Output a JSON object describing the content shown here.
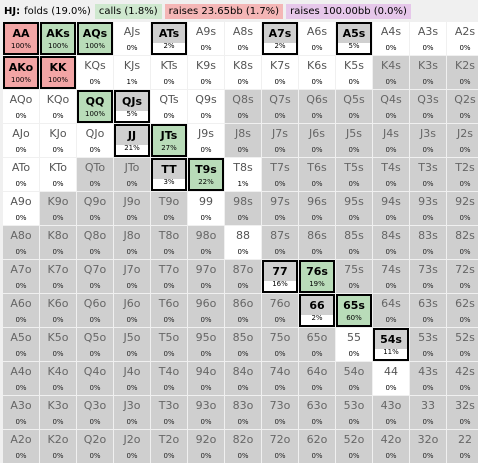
{
  "header": {
    "position": "HJ:",
    "folds": "folds (19.0%)",
    "calls": "calls (1.8%)",
    "raise_small": "raises 23.65bb (1.7%)",
    "raise_big": "raises 100.00bb (0.0%)"
  },
  "colors": {
    "calls": "#b9dcb9",
    "raise": "#f2a5a5",
    "raise_big": "#e6c7ea",
    "fold": "#cfcfcf"
  },
  "grid": [
    [
      [
        "AA",
        "100%",
        "raise"
      ],
      [
        "AKs",
        "100%",
        "calls"
      ],
      [
        "AQs",
        "100%",
        "calls"
      ],
      [
        "AJs",
        "0%",
        "open"
      ],
      [
        "ATs",
        "2%",
        "boxed"
      ],
      [
        "A9s",
        "0%",
        "open"
      ],
      [
        "A8s",
        "0%",
        "open"
      ],
      [
        "A7s",
        "2%",
        "boxed"
      ],
      [
        "A6s",
        "0%",
        "open"
      ],
      [
        "A5s",
        "5%",
        "boxed"
      ],
      [
        "A4s",
        "0%",
        "open"
      ],
      [
        "A3s",
        "0%",
        "open"
      ],
      [
        "A2s",
        "0%",
        "open"
      ]
    ],
    [
      [
        "AKo",
        "100%",
        "raise"
      ],
      [
        "KK",
        "100%",
        "raise"
      ],
      [
        "KQs",
        "0%",
        "open"
      ],
      [
        "KJs",
        "1%",
        "open"
      ],
      [
        "KTs",
        "0%",
        "open"
      ],
      [
        "K9s",
        "0%",
        "open"
      ],
      [
        "K8s",
        "0%",
        "open"
      ],
      [
        "K7s",
        "0%",
        "open"
      ],
      [
        "K6s",
        "0%",
        "open"
      ],
      [
        "K5s",
        "0%",
        "open"
      ],
      [
        "K4s",
        "0%",
        "fold"
      ],
      [
        "K3s",
        "0%",
        "fold"
      ],
      [
        "K2s",
        "0%",
        "fold"
      ]
    ],
    [
      [
        "AQo",
        "0%",
        "open"
      ],
      [
        "KQo",
        "0%",
        "open"
      ],
      [
        "QQ",
        "100%",
        "calls"
      ],
      [
        "QJs",
        "5%",
        "boxed"
      ],
      [
        "QTs",
        "0%",
        "open"
      ],
      [
        "Q9s",
        "0%",
        "open"
      ],
      [
        "Q8s",
        "0%",
        "fold"
      ],
      [
        "Q7s",
        "0%",
        "fold"
      ],
      [
        "Q6s",
        "0%",
        "fold"
      ],
      [
        "Q5s",
        "0%",
        "fold"
      ],
      [
        "Q4s",
        "0%",
        "fold"
      ],
      [
        "Q3s",
        "0%",
        "fold"
      ],
      [
        "Q2s",
        "0%",
        "fold"
      ]
    ],
    [
      [
        "AJo",
        "0%",
        "open"
      ],
      [
        "KJo",
        "0%",
        "open"
      ],
      [
        "QJo",
        "0%",
        "open"
      ],
      [
        "JJ",
        "21%",
        "boxed"
      ],
      [
        "JTs",
        "27%",
        "calls"
      ],
      [
        "J9s",
        "0%",
        "open"
      ],
      [
        "J8s",
        "0%",
        "fold"
      ],
      [
        "J7s",
        "0%",
        "fold"
      ],
      [
        "J6s",
        "0%",
        "fold"
      ],
      [
        "J5s",
        "0%",
        "fold"
      ],
      [
        "J4s",
        "0%",
        "fold"
      ],
      [
        "J3s",
        "0%",
        "fold"
      ],
      [
        "J2s",
        "0%",
        "fold"
      ]
    ],
    [
      [
        "ATo",
        "0%",
        "open"
      ],
      [
        "KTo",
        "0%",
        "open"
      ],
      [
        "QTo",
        "0%",
        "fold"
      ],
      [
        "JTo",
        "0%",
        "fold"
      ],
      [
        "TT",
        "3%",
        "boxed"
      ],
      [
        "T9s",
        "22%",
        "calls"
      ],
      [
        "T8s",
        "1%",
        "open"
      ],
      [
        "T7s",
        "0%",
        "fold"
      ],
      [
        "T6s",
        "0%",
        "fold"
      ],
      [
        "T5s",
        "0%",
        "fold"
      ],
      [
        "T4s",
        "0%",
        "fold"
      ],
      [
        "T3s",
        "0%",
        "fold"
      ],
      [
        "T2s",
        "0%",
        "fold"
      ]
    ],
    [
      [
        "A9o",
        "0%",
        "open"
      ],
      [
        "K9o",
        "0%",
        "fold"
      ],
      [
        "Q9o",
        "0%",
        "fold"
      ],
      [
        "J9o",
        "0%",
        "fold"
      ],
      [
        "T9o",
        "0%",
        "fold"
      ],
      [
        "99",
        "0%",
        "open"
      ],
      [
        "98s",
        "0%",
        "fold"
      ],
      [
        "97s",
        "0%",
        "fold"
      ],
      [
        "96s",
        "0%",
        "fold"
      ],
      [
        "95s",
        "0%",
        "fold"
      ],
      [
        "94s",
        "0%",
        "fold"
      ],
      [
        "93s",
        "0%",
        "fold"
      ],
      [
        "92s",
        "0%",
        "fold"
      ]
    ],
    [
      [
        "A8o",
        "0%",
        "fold"
      ],
      [
        "K8o",
        "0%",
        "fold"
      ],
      [
        "Q8o",
        "0%",
        "fold"
      ],
      [
        "J8o",
        "0%",
        "fold"
      ],
      [
        "T8o",
        "0%",
        "fold"
      ],
      [
        "98o",
        "0%",
        "fold"
      ],
      [
        "88",
        "0%",
        "open"
      ],
      [
        "87s",
        "0%",
        "fold"
      ],
      [
        "86s",
        "0%",
        "fold"
      ],
      [
        "85s",
        "0%",
        "fold"
      ],
      [
        "84s",
        "0%",
        "fold"
      ],
      [
        "83s",
        "0%",
        "fold"
      ],
      [
        "82s",
        "0%",
        "fold"
      ]
    ],
    [
      [
        "A7o",
        "0%",
        "fold"
      ],
      [
        "K7o",
        "0%",
        "fold"
      ],
      [
        "Q7o",
        "0%",
        "fold"
      ],
      [
        "J7o",
        "0%",
        "fold"
      ],
      [
        "T7o",
        "0%",
        "fold"
      ],
      [
        "97o",
        "0%",
        "fold"
      ],
      [
        "87o",
        "0%",
        "fold"
      ],
      [
        "77",
        "16%",
        "boxed"
      ],
      [
        "76s",
        "19%",
        "calls"
      ],
      [
        "75s",
        "0%",
        "fold"
      ],
      [
        "74s",
        "0%",
        "fold"
      ],
      [
        "73s",
        "0%",
        "fold"
      ],
      [
        "72s",
        "0%",
        "fold"
      ]
    ],
    [
      [
        "A6o",
        "0%",
        "fold"
      ],
      [
        "K6o",
        "0%",
        "fold"
      ],
      [
        "Q6o",
        "0%",
        "fold"
      ],
      [
        "J6o",
        "0%",
        "fold"
      ],
      [
        "T6o",
        "0%",
        "fold"
      ],
      [
        "96o",
        "0%",
        "fold"
      ],
      [
        "86o",
        "0%",
        "fold"
      ],
      [
        "76o",
        "0%",
        "fold"
      ],
      [
        "66",
        "2%",
        "boxed"
      ],
      [
        "65s",
        "60%",
        "calls"
      ],
      [
        "64s",
        "0%",
        "fold"
      ],
      [
        "63s",
        "0%",
        "fold"
      ],
      [
        "62s",
        "0%",
        "fold"
      ]
    ],
    [
      [
        "A5o",
        "0%",
        "fold"
      ],
      [
        "K5o",
        "0%",
        "fold"
      ],
      [
        "Q5o",
        "0%",
        "fold"
      ],
      [
        "J5o",
        "0%",
        "fold"
      ],
      [
        "T5o",
        "0%",
        "fold"
      ],
      [
        "95o",
        "0%",
        "fold"
      ],
      [
        "85o",
        "0%",
        "fold"
      ],
      [
        "75o",
        "0%",
        "fold"
      ],
      [
        "65o",
        "0%",
        "fold"
      ],
      [
        "55",
        "0%",
        "open"
      ],
      [
        "54s",
        "11%",
        "boxed"
      ],
      [
        "53s",
        "0%",
        "fold"
      ],
      [
        "52s",
        "0%",
        "fold"
      ]
    ],
    [
      [
        "A4o",
        "0%",
        "fold"
      ],
      [
        "K4o",
        "0%",
        "fold"
      ],
      [
        "Q4o",
        "0%",
        "fold"
      ],
      [
        "J4o",
        "0%",
        "fold"
      ],
      [
        "T4o",
        "0%",
        "fold"
      ],
      [
        "94o",
        "0%",
        "fold"
      ],
      [
        "84o",
        "0%",
        "fold"
      ],
      [
        "74o",
        "0%",
        "fold"
      ],
      [
        "64o",
        "0%",
        "fold"
      ],
      [
        "54o",
        "0%",
        "fold"
      ],
      [
        "44",
        "0%",
        "open"
      ],
      [
        "43s",
        "0%",
        "fold"
      ],
      [
        "42s",
        "0%",
        "fold"
      ]
    ],
    [
      [
        "A3o",
        "0%",
        "fold"
      ],
      [
        "K3o",
        "0%",
        "fold"
      ],
      [
        "Q3o",
        "0%",
        "fold"
      ],
      [
        "J3o",
        "0%",
        "fold"
      ],
      [
        "T3o",
        "0%",
        "fold"
      ],
      [
        "93o",
        "0%",
        "fold"
      ],
      [
        "83o",
        "0%",
        "fold"
      ],
      [
        "73o",
        "0%",
        "fold"
      ],
      [
        "63o",
        "0%",
        "fold"
      ],
      [
        "53o",
        "0%",
        "fold"
      ],
      [
        "43o",
        "0%",
        "fold"
      ],
      [
        "33",
        "0%",
        "fold"
      ],
      [
        "32s",
        "0%",
        "fold"
      ]
    ],
    [
      [
        "A2o",
        "0%",
        "fold"
      ],
      [
        "K2o",
        "0%",
        "fold"
      ],
      [
        "Q2o",
        "0%",
        "fold"
      ],
      [
        "J2o",
        "0%",
        "fold"
      ],
      [
        "T2o",
        "0%",
        "fold"
      ],
      [
        "92o",
        "0%",
        "fold"
      ],
      [
        "82o",
        "0%",
        "fold"
      ],
      [
        "72o",
        "0%",
        "fold"
      ],
      [
        "62o",
        "0%",
        "fold"
      ],
      [
        "52o",
        "0%",
        "fold"
      ],
      [
        "42o",
        "0%",
        "fold"
      ],
      [
        "32o",
        "0%",
        "fold"
      ],
      [
        "22",
        "0%",
        "fold"
      ]
    ]
  ]
}
